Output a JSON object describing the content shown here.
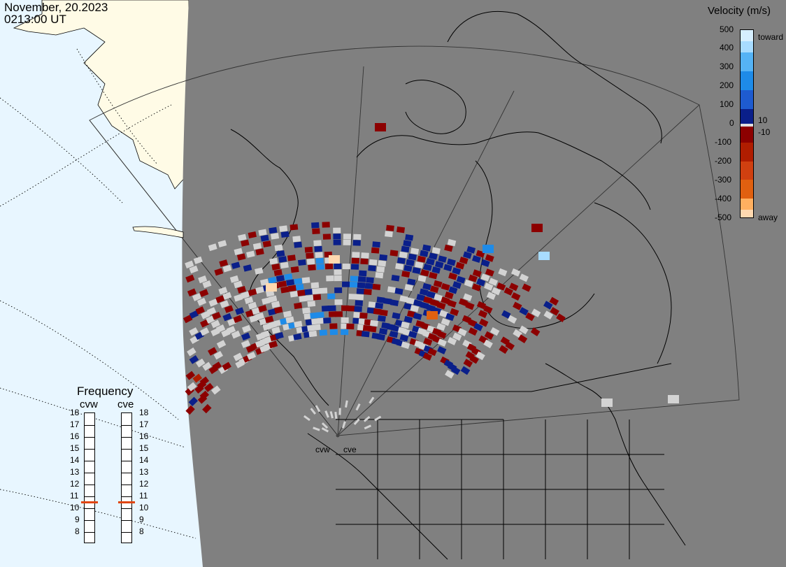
{
  "header": {
    "date": "November, 20.2023",
    "time": "0213:00 UT"
  },
  "legend": {
    "title": "Velocity (m/s)",
    "ticks": [
      "500",
      "400",
      "300",
      "200",
      "100",
      "10",
      "0",
      "-10",
      "-100",
      "-200",
      "-300",
      "-400",
      "-500"
    ],
    "toward_label": "toward",
    "away_label": "away",
    "colors": {
      "toward_high": "#d6efff",
      "toward_mid": "#1e8be8",
      "toward_low": "#0a1f8a",
      "zero": "#e0e0e0",
      "away_low": "#8c0000",
      "away_mid": "#e06010",
      "away_high": "#ffd9b0",
      "ground_scatter": "#d3d3d3"
    }
  },
  "frequency": {
    "title": "Frequency",
    "radars": [
      {
        "name": "cvw",
        "value_mhz": 10.5
      },
      {
        "name": "cve",
        "value_mhz": 10.5
      }
    ],
    "scale": [
      "18",
      "17",
      "16",
      "15",
      "14",
      "13",
      "12",
      "11",
      "10",
      "9",
      "8"
    ]
  },
  "sites": [
    {
      "name": "cvw"
    },
    {
      "name": "cve"
    }
  ],
  "map_colors": {
    "ocean": "#e8f6ff",
    "night": "#808080",
    "land_day": "#fffbe6",
    "coast": "#000000"
  }
}
